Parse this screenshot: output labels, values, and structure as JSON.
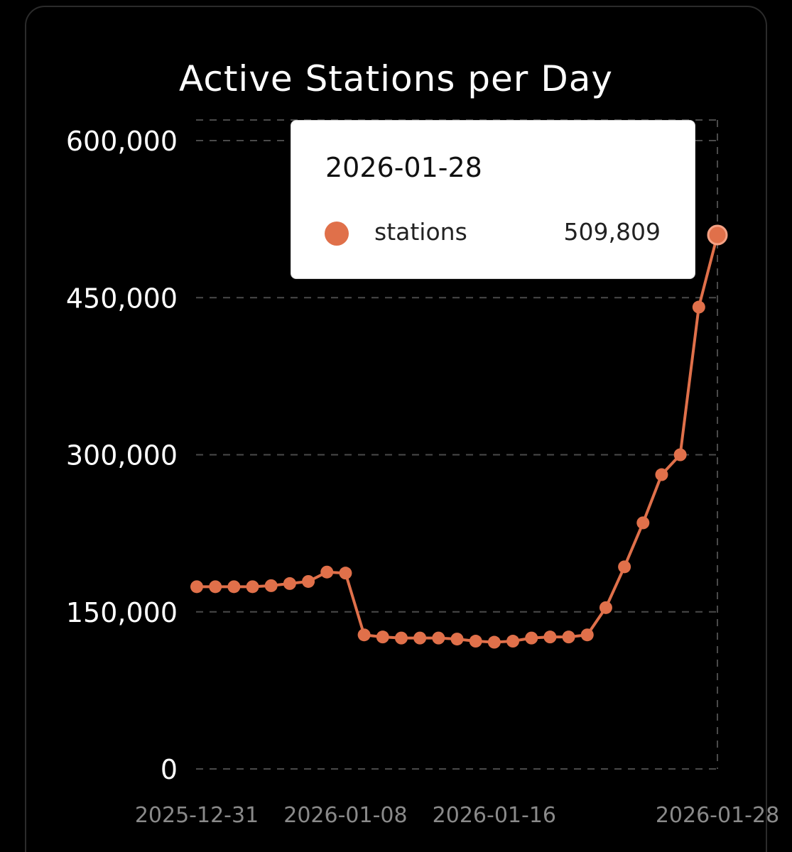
{
  "colors": {
    "background": "#000000",
    "series": "#e0704a",
    "grid": "#4a4a4a",
    "axis_text": "#ffffff",
    "x_tick_text": "#8a8a8a"
  },
  "chart_data": {
    "type": "line",
    "title": "Active Stations per Day",
    "xlabel": "",
    "ylabel": "",
    "ylim": [
      0,
      600000
    ],
    "yticks": [
      0,
      150000,
      300000,
      450000,
      600000
    ],
    "ytick_labels": [
      "0",
      "150,000",
      "300,000",
      "450,000",
      "600,000"
    ],
    "xtick_labels": [
      "2025-12-31",
      "2026-01-08",
      "2026-01-16",
      "2026-01-28"
    ],
    "grid": true,
    "legend": "none",
    "x": [
      "2025-12-31",
      "2026-01-01",
      "2026-01-02",
      "2026-01-03",
      "2026-01-04",
      "2026-01-05",
      "2026-01-06",
      "2026-01-07",
      "2026-01-08",
      "2026-01-09",
      "2026-01-10",
      "2026-01-11",
      "2026-01-12",
      "2026-01-13",
      "2026-01-14",
      "2026-01-15",
      "2026-01-16",
      "2026-01-17",
      "2026-01-18",
      "2026-01-19",
      "2026-01-20",
      "2026-01-21",
      "2026-01-22",
      "2026-01-23",
      "2026-01-24",
      "2026-01-25",
      "2026-01-26",
      "2026-01-27",
      "2026-01-28"
    ],
    "series": [
      {
        "name": "stations",
        "values": [
          174000,
          174000,
          174000,
          174000,
          175000,
          177000,
          179000,
          188000,
          187000,
          128000,
          126000,
          125000,
          125000,
          125000,
          124000,
          122000,
          121000,
          122000,
          125000,
          126000,
          126000,
          128000,
          154000,
          193000,
          235000,
          281000,
          300000,
          441000,
          509809
        ]
      }
    ]
  },
  "tooltip": {
    "date": "2026-01-28",
    "series_name": "stations",
    "value": "509,809"
  }
}
